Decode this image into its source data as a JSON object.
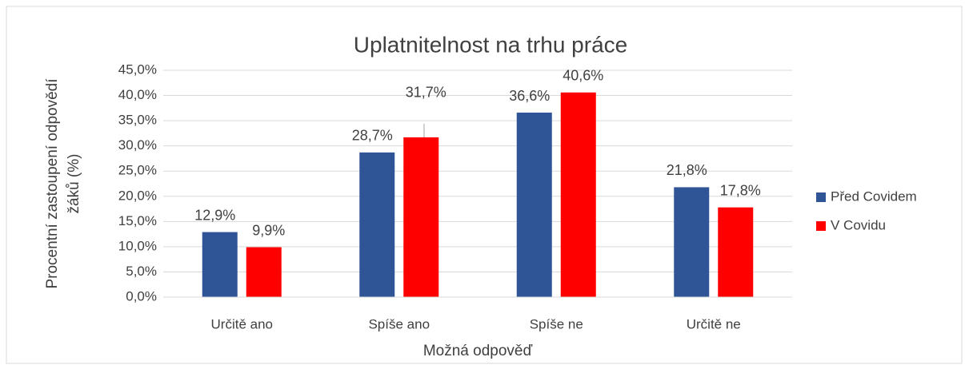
{
  "chart_data": {
    "type": "bar",
    "title": "Uplatnitelnost na trhu práce",
    "x_label": "Možná odpověď",
    "y_label": [
      "Procentní zastoupení odpovědí",
      "žáků (%)"
    ],
    "categories": [
      "Určitě ano",
      "Spíše ano",
      "Spíše ne",
      "Určitě ne"
    ],
    "series": [
      {
        "name": "Před Covidem",
        "color": "#2f5597",
        "values": [
          12.9,
          28.7,
          36.6,
          21.8
        ],
        "value_labels": [
          "12,9%",
          "28,7%",
          "36,6%",
          "21,8%"
        ]
      },
      {
        "name": "V Covidu",
        "color": "#ff0000",
        "values": [
          9.9,
          31.7,
          40.6,
          17.8
        ],
        "value_labels": [
          "9,9%",
          "31,7%",
          "40,6%",
          "17,8%"
        ]
      }
    ],
    "ylim": [
      0,
      45
    ],
    "yticks": [
      {
        "value": 0,
        "label": "0,0%"
      },
      {
        "value": 5,
        "label": "5,0%"
      },
      {
        "value": 10,
        "label": "10,0%"
      },
      {
        "value": 15,
        "label": "15,0%"
      },
      {
        "value": 20,
        "label": "20,0%"
      },
      {
        "value": 25,
        "label": "25,0%"
      },
      {
        "value": 30,
        "label": "30,0%"
      },
      {
        "value": 35,
        "label": "35,0%"
      },
      {
        "value": 40,
        "label": "40,0%"
      },
      {
        "value": 45,
        "label": "45,0%"
      }
    ],
    "grid": true,
    "legend": "right"
  }
}
